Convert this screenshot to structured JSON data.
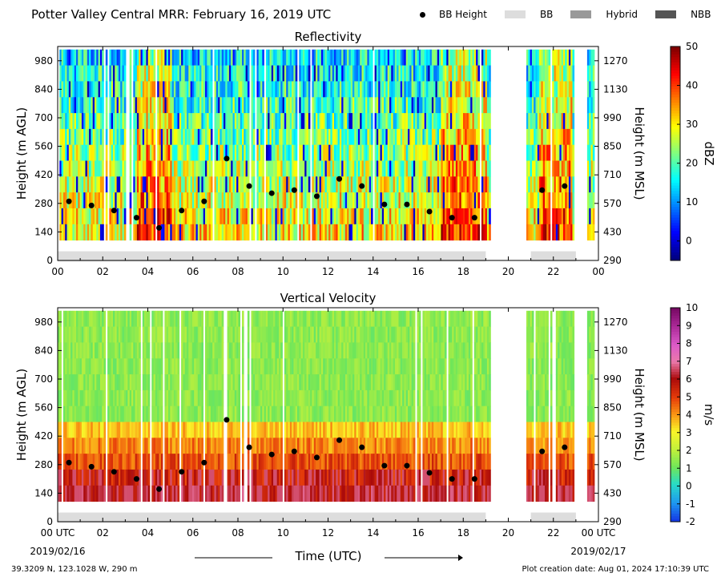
{
  "header": {
    "title": "Potter Valley Central MRR:  February 16, 2019 UTC"
  },
  "legend": {
    "items": [
      {
        "label": "BB Height",
        "kind": "dot",
        "color": "#000000"
      },
      {
        "label": "BB",
        "kind": "swatch",
        "color": "#dddddd"
      },
      {
        "label": "Hybrid",
        "kind": "swatch",
        "color": "#999999"
      },
      {
        "label": "NBB",
        "kind": "swatch",
        "color": "#555555"
      }
    ]
  },
  "footer": {
    "location": "39.3209 N, 123.1028 W, 290 m",
    "creation": "Plot creation date: Aug 01, 2024 17:10:39 UTC",
    "xlabel": "Time (UTC)",
    "start_label": "00 UTC",
    "start_date": "2019/02/16",
    "end_label": "00 UTC",
    "end_date": "2019/02/17"
  },
  "chart_data": [
    {
      "type": "heatmap",
      "title": "Reflectivity",
      "xlabel": "",
      "ylabel": "Height (m AGL)",
      "ylabel_right": "Height (m MSL)",
      "xlim": [
        0,
        24
      ],
      "ylim": [
        0,
        1050
      ],
      "x_ticks": [
        "00",
        "02",
        "04",
        "06",
        "08",
        "10",
        "12",
        "14",
        "16",
        "18",
        "20",
        "22",
        "00"
      ],
      "y_ticks": [
        0,
        140,
        280,
        420,
        560,
        700,
        840,
        980
      ],
      "y_ticks_right": [
        290,
        430,
        570,
        710,
        850,
        990,
        1130,
        1270
      ],
      "colorbar": {
        "label": "dBZ",
        "min": -5,
        "max": 50,
        "ticks": [
          0,
          10,
          20,
          30,
          40,
          50
        ],
        "scheme": "jet"
      },
      "data_coverage_hours": [
        [
          0,
          19.2
        ],
        [
          20.8,
          22.9
        ],
        [
          23.5,
          23.8
        ]
      ],
      "bb_bars": [
        [
          0,
          19
        ],
        [
          21,
          23
        ]
      ],
      "bb_height": {
        "x": [
          0.5,
          1.5,
          2.5,
          3.5,
          4.5,
          5.5,
          6.5,
          7.5,
          8.5,
          9.5,
          10.5,
          11.5,
          12.5,
          13.5,
          14.5,
          15.5,
          16.5,
          17.5,
          18.5,
          21.5,
          22.5
        ],
        "y": [
          290,
          270,
          245,
          210,
          160,
          245,
          290,
          500,
          365,
          330,
          345,
          315,
          400,
          365,
          275,
          275,
          240,
          210,
          210,
          345,
          365
        ]
      }
    },
    {
      "type": "heatmap",
      "title": "Vertical Velocity",
      "xlabel": "Time (UTC)",
      "ylabel": "Height (m AGL)",
      "ylabel_right": "Height (m MSL)",
      "xlim": [
        0,
        24
      ],
      "ylim": [
        0,
        1050
      ],
      "x_ticks": [
        "00 UTC",
        "02",
        "04",
        "06",
        "08",
        "10",
        "12",
        "14",
        "16",
        "18",
        "20",
        "22",
        "00 UTC"
      ],
      "y_ticks": [
        0,
        140,
        280,
        420,
        560,
        700,
        840,
        980
      ],
      "y_ticks_right": [
        290,
        430,
        570,
        710,
        850,
        990,
        1130,
        1270
      ],
      "colorbar": {
        "label": "m/s",
        "min": -2,
        "max": 10,
        "ticks": [
          -2,
          -1,
          0,
          1,
          2,
          3,
          4,
          5,
          6,
          7,
          8,
          9,
          10
        ],
        "scheme": "velocity"
      },
      "data_coverage_hours": [
        [
          0,
          19.2
        ],
        [
          20.8,
          22.9
        ],
        [
          23.5,
          23.8
        ]
      ],
      "bb_bars": [
        [
          0,
          19
        ],
        [
          21,
          23
        ]
      ],
      "bb_height": {
        "x": [
          0.5,
          1.5,
          2.5,
          3.5,
          4.5,
          5.5,
          6.5,
          7.5,
          8.5,
          9.5,
          10.5,
          11.5,
          12.5,
          13.5,
          14.5,
          15.5,
          16.5,
          17.5,
          18.5,
          21.5,
          22.5
        ],
        "y": [
          290,
          270,
          245,
          210,
          160,
          245,
          290,
          500,
          365,
          330,
          345,
          315,
          400,
          365,
          275,
          275,
          240,
          210,
          210,
          345,
          365
        ]
      }
    }
  ]
}
